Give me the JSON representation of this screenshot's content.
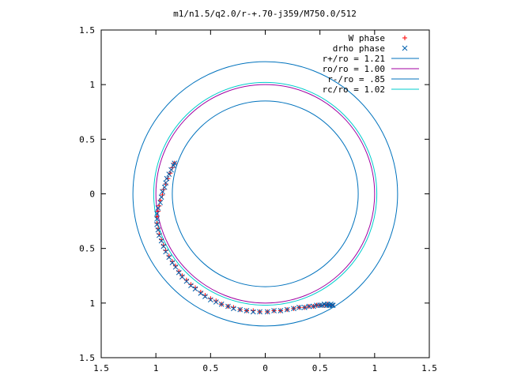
{
  "chart_data": {
    "type": "scatter",
    "title": "m1/n1.5/q2.0/r-+.70-j359/M750.0/512",
    "xlabel": "",
    "ylabel": "",
    "xlim": [
      -1.5,
      1.5
    ],
    "ylim": [
      -1.5,
      1.5
    ],
    "x_ticks": [
      -1.5,
      -1,
      -0.5,
      0,
      0.5,
      1,
      1.5
    ],
    "x_tick_labels": [
      "1.5",
      "1",
      "0.5",
      "0",
      "0.5",
      "1",
      "1.5"
    ],
    "y_ticks": [
      1.5,
      1,
      0.5,
      0,
      -0.5,
      -1,
      -1.5
    ],
    "y_tick_labels": [
      "1.5",
      "1",
      "0.5",
      "0",
      "0.5",
      "1",
      "1.5"
    ],
    "grid": false,
    "legend_position": "top-right",
    "series": [
      {
        "name": "W phase",
        "kind": "points",
        "marker": "+",
        "color": "#ff0000",
        "x": [
          -0.83,
          -0.85,
          -0.87,
          -0.89,
          -0.91,
          -0.93,
          -0.94,
          -0.96,
          -0.97,
          -0.98,
          -0.99,
          -0.99,
          -0.98,
          -0.97,
          -0.95,
          -0.93,
          -0.91,
          -0.88,
          -0.85,
          -0.82,
          -0.79,
          -0.76,
          -0.72,
          -0.68,
          -0.64,
          -0.59,
          -0.55,
          -0.5,
          -0.45,
          -0.4,
          -0.34,
          -0.29,
          -0.23,
          -0.17,
          -0.11,
          -0.05,
          0.02,
          0.08,
          0.14,
          0.2,
          0.26,
          0.31,
          0.36,
          0.4,
          0.44,
          0.47,
          0.5,
          0.53,
          0.55,
          0.57,
          0.58,
          0.6,
          0.61
        ],
        "y": [
          0.28,
          0.24,
          0.19,
          0.14,
          0.09,
          0.04,
          -0.01,
          -0.06,
          -0.11,
          -0.16,
          -0.21,
          -0.27,
          -0.32,
          -0.37,
          -0.42,
          -0.47,
          -0.52,
          -0.57,
          -0.62,
          -0.66,
          -0.71,
          -0.75,
          -0.79,
          -0.83,
          -0.86,
          -0.9,
          -0.93,
          -0.96,
          -0.98,
          -1.01,
          -1.03,
          -1.04,
          -1.06,
          -1.07,
          -1.07,
          -1.08,
          -1.08,
          -1.07,
          -1.07,
          -1.06,
          -1.05,
          -1.04,
          -1.04,
          -1.03,
          -1.03,
          -1.02,
          -1.02,
          -1.02,
          -1.02,
          -1.01,
          -1.02,
          -1.02,
          -1.02
        ]
      },
      {
        "name": "drho phase",
        "kind": "points",
        "marker": "x",
        "color": "#0060ad",
        "x": [
          -0.83,
          -0.84,
          -0.86,
          -0.88,
          -0.9,
          -0.91,
          -0.92,
          -0.94,
          -0.95,
          -0.96,
          -0.98,
          -0.99,
          -0.99,
          -0.99,
          -0.98,
          -0.97,
          -0.95,
          -0.93,
          -0.91,
          -0.88,
          -0.85,
          -0.82,
          -0.79,
          -0.76,
          -0.72,
          -0.68,
          -0.64,
          -0.59,
          -0.55,
          -0.5,
          -0.45,
          -0.4,
          -0.34,
          -0.29,
          -0.23,
          -0.17,
          -0.11,
          -0.05,
          0.02,
          0.08,
          0.14,
          0.2,
          0.26,
          0.31,
          0.36,
          0.4,
          0.44,
          0.47,
          0.5,
          0.52,
          0.54,
          0.56,
          0.57,
          0.58,
          0.59,
          0.6,
          0.61,
          0.62
        ],
        "y": [
          0.28,
          0.26,
          0.22,
          0.18,
          0.14,
          0.1,
          0.06,
          0.02,
          -0.03,
          -0.08,
          -0.13,
          -0.18,
          -0.23,
          -0.28,
          -0.33,
          -0.38,
          -0.43,
          -0.48,
          -0.53,
          -0.58,
          -0.63,
          -0.67,
          -0.72,
          -0.76,
          -0.8,
          -0.84,
          -0.87,
          -0.91,
          -0.94,
          -0.97,
          -0.99,
          -1.01,
          -1.03,
          -1.05,
          -1.06,
          -1.07,
          -1.08,
          -1.08,
          -1.08,
          -1.07,
          -1.07,
          -1.06,
          -1.05,
          -1.04,
          -1.04,
          -1.03,
          -1.03,
          -1.02,
          -1.02,
          -1.02,
          -1.01,
          -1.02,
          -1.01,
          -1.02,
          -1.02,
          -1.01,
          -1.02,
          -1.02
        ]
      },
      {
        "name": "r+/ro = 1.21",
        "kind": "circle",
        "radius": 1.21,
        "color": "#0072bd"
      },
      {
        "name": "ro/ro = 1.00",
        "kind": "circle",
        "radius": 1.0,
        "color": "#a000a0"
      },
      {
        "name": "r-/ro = .85",
        "kind": "circle",
        "radius": 0.85,
        "color": "#0072bd"
      },
      {
        "name": "rc/ro = 1.02",
        "kind": "circle",
        "radius": 1.02,
        "color": "#00cccc"
      }
    ]
  }
}
